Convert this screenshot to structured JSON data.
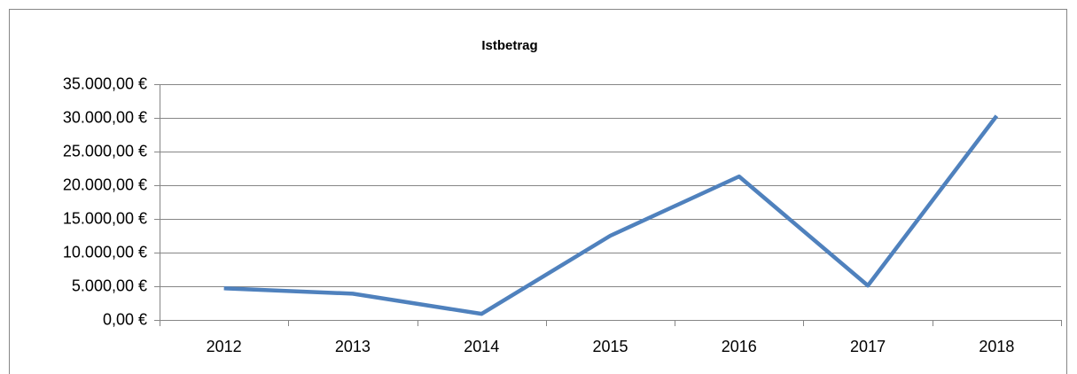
{
  "chart_data": {
    "type": "line",
    "title": "Istbetrag",
    "categories": [
      "2012",
      "2013",
      "2014",
      "2015",
      "2016",
      "2017",
      "2018"
    ],
    "series": [
      {
        "name": "Istbetrag",
        "color": "#4f81bd",
        "values": [
          4700,
          3900,
          900,
          12500,
          21300,
          5100,
          30300
        ]
      }
    ],
    "ylim": [
      0,
      35000
    ],
    "yticks": [
      {
        "value": 0,
        "label": "0,00 €"
      },
      {
        "value": 5000,
        "label": "5.000,00 €"
      },
      {
        "value": 10000,
        "label": "10.000,00 €"
      },
      {
        "value": 15000,
        "label": "15.000,00 €"
      },
      {
        "value": 20000,
        "label": "20.000,00 €"
      },
      {
        "value": 25000,
        "label": "25.000,00 €"
      },
      {
        "value": 30000,
        "label": "30.000,00 €"
      },
      {
        "value": 35000,
        "label": "35.000,00 €"
      }
    ],
    "grid": true
  }
}
